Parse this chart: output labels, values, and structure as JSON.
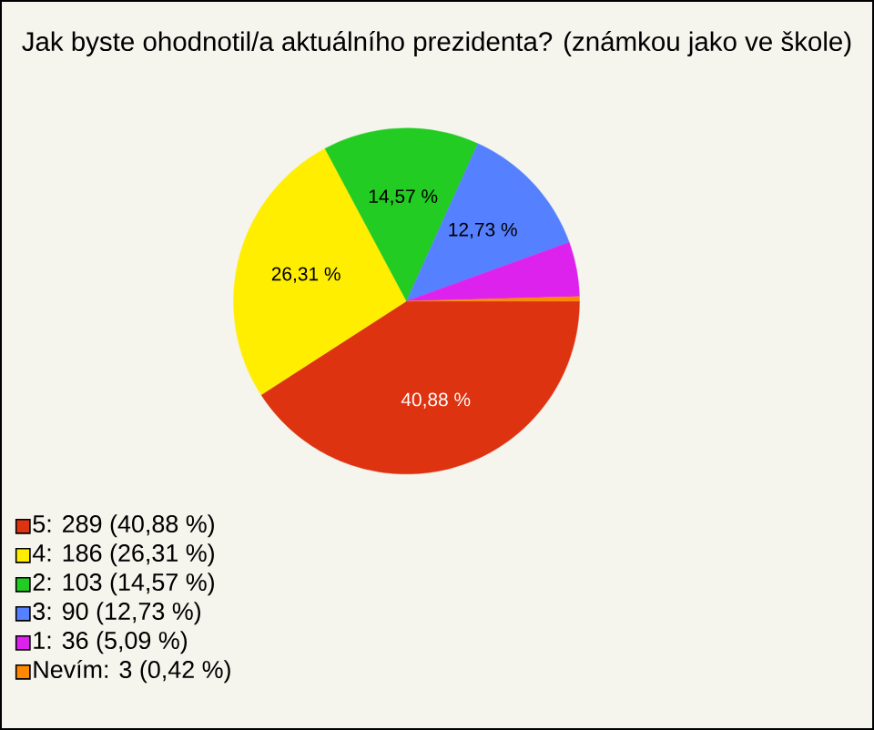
{
  "chart_data": {
    "type": "pie",
    "title": "Jak byste ohodnotil/a aktuálního prezidenta? (známkou jako ve škole)",
    "categories": [
      "5: 289 (40,88 %)",
      "4: 186 (26,31 %)",
      "2: 103 (14,57 %)",
      "3: 90 (12,73 %)",
      "1: 36 (5,09 %)",
      "Nevím: 3 (0,42 %)"
    ],
    "values": [
      40.88,
      26.31,
      14.57,
      12.73,
      5.09,
      0.42
    ],
    "colors": [
      "#dd3311",
      "#ffee00",
      "#22cc22",
      "#5580ff",
      "#dd22ee",
      "#ff8800"
    ],
    "value_labels": [
      "40,88 %",
      "26,31 %",
      "14,57 %",
      "12,73 %",
      null,
      null
    ],
    "legend": "bottom left"
  }
}
